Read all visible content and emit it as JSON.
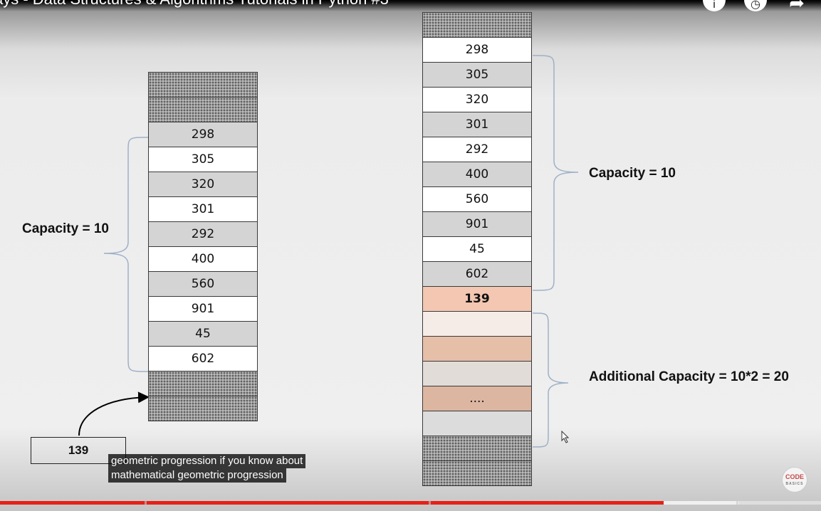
{
  "video": {
    "title": "ays - Data Structures & Algorithms Tutorials in Python #3"
  },
  "top_icons": [
    "info-icon",
    "clock-icon",
    "share-icon"
  ],
  "left_array": {
    "cells": [
      {
        "value": "",
        "style": "h"
      },
      {
        "value": "",
        "style": "h"
      },
      {
        "value": "298",
        "style": "g"
      },
      {
        "value": "305",
        "style": "w"
      },
      {
        "value": "320",
        "style": "g"
      },
      {
        "value": "301",
        "style": "w"
      },
      {
        "value": "292",
        "style": "g"
      },
      {
        "value": "400",
        "style": "w"
      },
      {
        "value": "560",
        "style": "g"
      },
      {
        "value": "901",
        "style": "w"
      },
      {
        "value": "45",
        "style": "g"
      },
      {
        "value": "602",
        "style": "w"
      },
      {
        "value": "",
        "style": "h"
      },
      {
        "value": "",
        "style": "h"
      }
    ],
    "capacity_label": "Capacity = 10",
    "new_element": "139"
  },
  "right_array": {
    "cells": [
      {
        "value": "",
        "style": "h"
      },
      {
        "value": "298",
        "style": "w"
      },
      {
        "value": "305",
        "style": "g"
      },
      {
        "value": "320",
        "style": "w"
      },
      {
        "value": "301",
        "style": "g"
      },
      {
        "value": "292",
        "style": "w"
      },
      {
        "value": "400",
        "style": "g"
      },
      {
        "value": "560",
        "style": "w"
      },
      {
        "value": "901",
        "style": "g"
      },
      {
        "value": "45",
        "style": "w"
      },
      {
        "value": "602",
        "style": "g"
      },
      {
        "value": "139",
        "style": "o1 bold"
      },
      {
        "value": "",
        "style": "o2"
      },
      {
        "value": "",
        "style": "o3"
      },
      {
        "value": "",
        "style": "o4"
      },
      {
        "value": "....",
        "style": "o5"
      },
      {
        "value": "",
        "style": "o6"
      },
      {
        "value": "",
        "style": "h"
      },
      {
        "value": "",
        "style": "h"
      }
    ],
    "capacity_label": "Capacity = 10",
    "additional_label": "Additional Capacity = 10*2 = 20"
  },
  "subtitles": [
    "geometric progression if you know about",
    "mathematical geometric progression"
  ],
  "logo": {
    "line1": "CODE",
    "line2": "BASICS"
  },
  "progress": {
    "played_fraction": 0.808,
    "buffered_fraction": 0.9,
    "chapter_marks": [
      0.176,
      0.522,
      0.897
    ],
    "colors": {
      "played": "#e62117"
    }
  }
}
